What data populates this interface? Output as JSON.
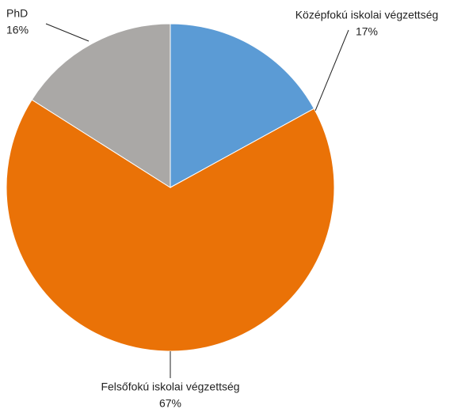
{
  "chart_data": {
    "type": "pie",
    "categories": [
      "Középfokú iskolai végzettség",
      "Felsőfokú iskolai végzettség",
      "PhD"
    ],
    "values": [
      17,
      67,
      16
    ],
    "value_labels": [
      "17%",
      "67%",
      "16%"
    ],
    "colors": [
      "#5b9bd5",
      "#ea7207",
      "#aaa8a6"
    ]
  }
}
